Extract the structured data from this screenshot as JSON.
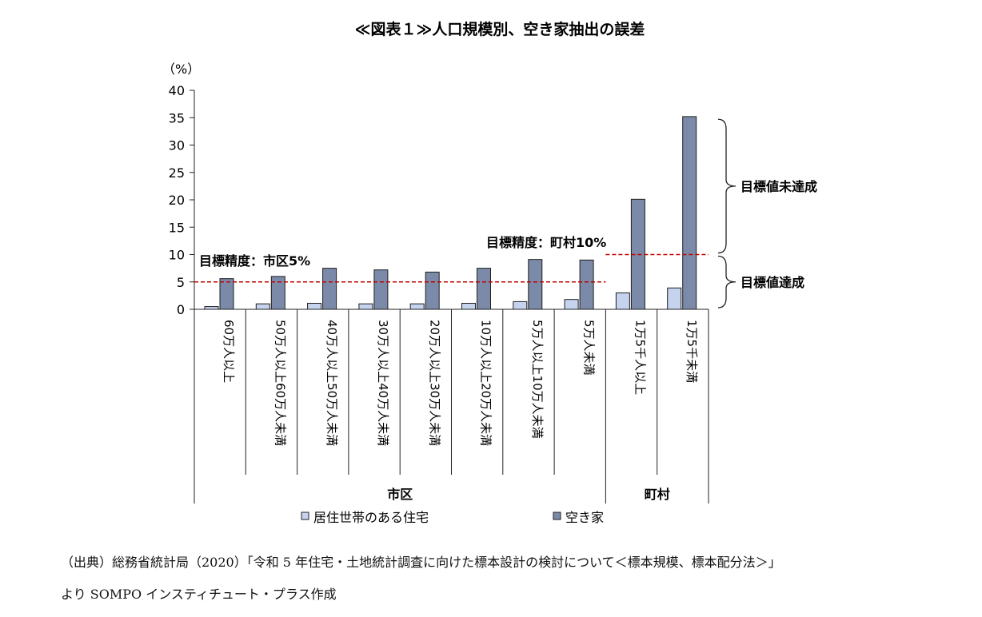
{
  "chart_data": {
    "type": "bar",
    "title": "≪図表１≫人口規模別、空き家抽出の誤差",
    "y_unit": "（%）",
    "ylim": [
      0,
      40
    ],
    "y_ticks": [
      "0",
      "5",
      "10",
      "15",
      "20",
      "25",
      "30",
      "35",
      "40"
    ],
    "categories": [
      "60万人以上",
      "50万人以上60万人未満",
      "40万人以上50万人未満",
      "30万人以上40万人未満",
      "20万人以上30万人未満",
      "10万人以上20万人未満",
      "5万人以上10万人未満",
      "5万人未満",
      "1万5千人以上",
      "1万5千未満"
    ],
    "groups": [
      {
        "label": "市区",
        "start": 0,
        "end": 7
      },
      {
        "label": "町村",
        "start": 8,
        "end": 9
      }
    ],
    "series": [
      {
        "name": "居住世帯のある住宅",
        "color": "#c5d3ee",
        "values": [
          0.5,
          1.0,
          1.1,
          1.0,
          1.0,
          1.1,
          1.4,
          1.8,
          3.0,
          3.9
        ]
      },
      {
        "name": "空き家",
        "color": "#7a8aa8",
        "values": [
          5.6,
          6.0,
          7.5,
          7.2,
          6.8,
          7.5,
          9.1,
          9.0,
          20.1,
          35.2
        ]
      }
    ],
    "targets": [
      {
        "label": "目標精度：市区5%",
        "value": 5,
        "from": 0,
        "to": 7
      },
      {
        "label": "目標精度：町村10%",
        "value": 10,
        "from": 8,
        "to": 9
      }
    ],
    "braces": [
      {
        "label": "目標値未達成",
        "from": 10,
        "to": 35
      },
      {
        "label": "目標値達成",
        "from": 0,
        "to": 10
      }
    ],
    "target_line_color": "#c00000",
    "grid": false,
    "legend_position": "bottom"
  },
  "source": {
    "line1": "（出典）総務省統計局（2020）「令和 5 年住宅・土地統計調査に向けた標本設計の検討について＜標本規模、標本配分法＞」",
    "line2": "より SOMPO インスティチュート・プラス作成"
  }
}
